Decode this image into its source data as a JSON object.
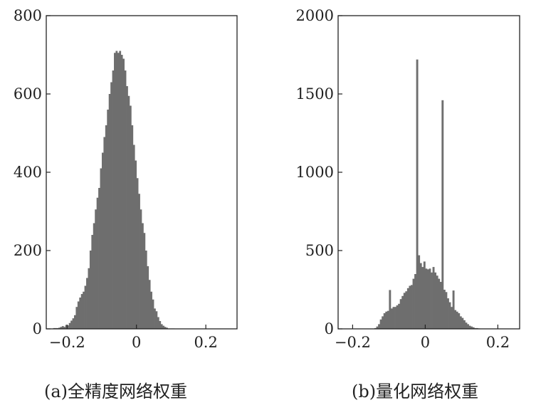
{
  "figure": {
    "captions": [
      "(a)全精度网络权重",
      "(b)量化网络权重"
    ]
  },
  "chart_data": [
    {
      "type": "bar",
      "subtype": "histogram",
      "title": "",
      "xlabel": "",
      "ylabel": "",
      "xlim": [
        -0.26,
        0.29
      ],
      "ylim": [
        0,
        800
      ],
      "xticks": [
        -0.2,
        0,
        0.2
      ],
      "xtick_labels": [
        "−0.2",
        "0",
        "0.2"
      ],
      "yticks": [
        0,
        200,
        400,
        600,
        800
      ],
      "ytick_labels": [
        "0",
        "200",
        "400",
        "600",
        "800"
      ],
      "grid": false,
      "bar_color": "#6e6e6e",
      "bin_width": 0.005,
      "bin_start": -0.24,
      "values": [
        2,
        2,
        2,
        3,
        5,
        7,
        5,
        10,
        9,
        15,
        21,
        27,
        35,
        56,
        70,
        80,
        89,
        95,
        110,
        130,
        155,
        200,
        240,
        270,
        305,
        335,
        360,
        410,
        450,
        490,
        520,
        560,
        600,
        630,
        660,
        705,
        710,
        705,
        710,
        700,
        690,
        660,
        620,
        595,
        570,
        520,
        470,
        430,
        385,
        345,
        305,
        270,
        245,
        200,
        160,
        125,
        95,
        75,
        52,
        45,
        30,
        20,
        12,
        8,
        5,
        3,
        1,
        1,
        1,
        1,
        0,
        0,
        0,
        0,
        0,
        0,
        0,
        0,
        0,
        0,
        0,
        0,
        0,
        0,
        0,
        0,
        0,
        0,
        0,
        0,
        0,
        0,
        0,
        0,
        0,
        0,
        0,
        0,
        0,
        0,
        0,
        0,
        0,
        0,
        0,
        0,
        0,
        0,
        0,
        0
      ]
    },
    {
      "type": "bar",
      "subtype": "histogram",
      "title": "",
      "xlabel": "",
      "ylabel": "",
      "xlim": [
        -0.24,
        0.26
      ],
      "ylim": [
        0,
        2000
      ],
      "xticks": [
        -0.2,
        0,
        0.2
      ],
      "xtick_labels": [
        "−0.2",
        "0",
        "0.2"
      ],
      "yticks": [
        0,
        500,
        1000,
        1500,
        2000
      ],
      "ytick_labels": [
        "0",
        "500",
        "1000",
        "1500",
        "2000"
      ],
      "grid": false,
      "bar_color": "#6e6e6e",
      "bin_width": 0.005,
      "bin_start": -0.14,
      "values": [
        5,
        15,
        30,
        60,
        80,
        100,
        110,
        115,
        248,
        130,
        140,
        140,
        150,
        160,
        190,
        210,
        230,
        240,
        260,
        275,
        280,
        320,
        350,
        1720,
        470,
        420,
        395,
        430,
        385,
        380,
        385,
        360,
        395,
        360,
        340,
        320,
        300,
        1460,
        250,
        235,
        195,
        170,
        140,
        245,
        120,
        110,
        100,
        80,
        70,
        55,
        40,
        30,
        20,
        15,
        10,
        5,
        5,
        3,
        2,
        1,
        1,
        1,
        0,
        0,
        0,
        0,
        0,
        0,
        0,
        0,
        0,
        0,
        0,
        0,
        0,
        0,
        0,
        0,
        0,
        0
      ]
    }
  ]
}
